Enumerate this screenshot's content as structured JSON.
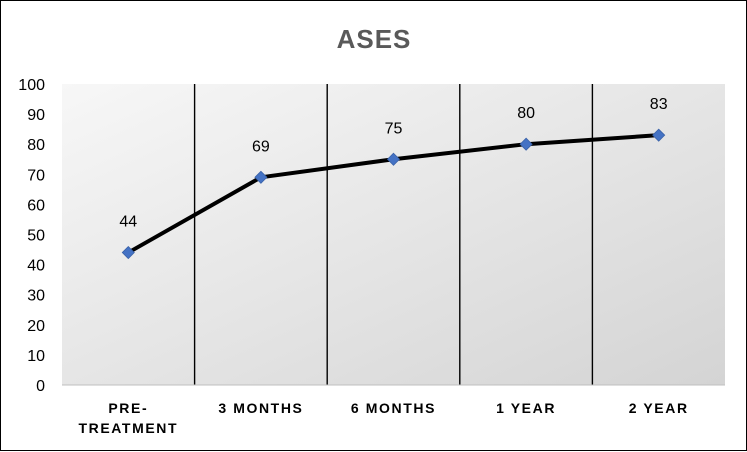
{
  "chart_data": {
    "type": "line",
    "title": "ASES",
    "categories": [
      [
        "PRE-",
        "TREATMENT"
      ],
      [
        "3 MONTHS"
      ],
      [
        "6 MONTHS"
      ],
      [
        "1 YEAR"
      ],
      [
        "2 YEAR"
      ]
    ],
    "series": [
      {
        "values": [
          44,
          69,
          75,
          80,
          83
        ],
        "data_labels": [
          "44",
          "69",
          "75",
          "80",
          "83"
        ]
      }
    ],
    "ylim": [
      0,
      100
    ],
    "yticks": [
      "0",
      "10",
      "20",
      "30",
      "40",
      "50",
      "60",
      "70",
      "80",
      "90",
      "100"
    ],
    "xlabel": "",
    "ylabel": "",
    "grid": "vertical category separators",
    "legend": "none",
    "colors": {
      "line": "#000000",
      "marker": "#4472C4",
      "plot_bg_light": "#F7F7F7",
      "plot_bg_dark": "#D4D4D4",
      "title": "#595959"
    }
  }
}
